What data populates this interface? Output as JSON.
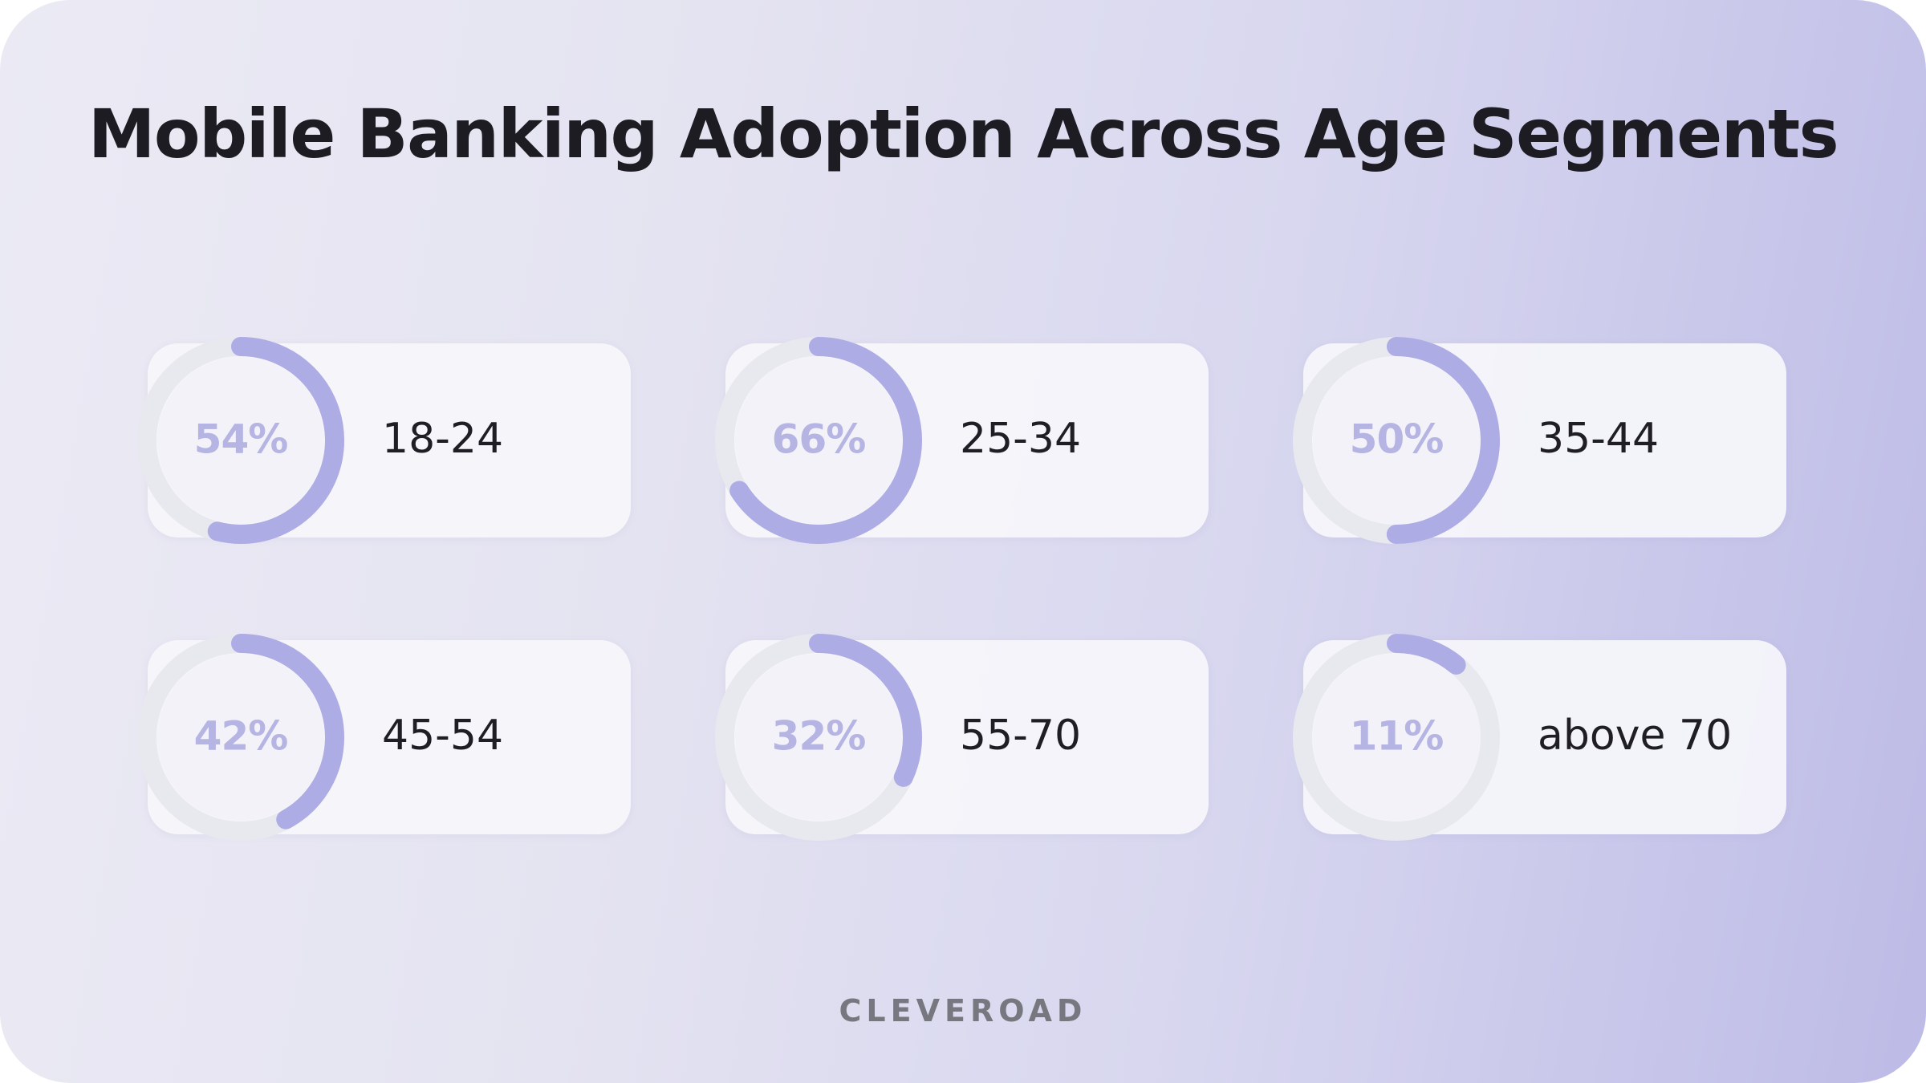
{
  "title": "Mobile Banking Adoption Across Age Segments",
  "brand": "CLEVEROAD",
  "colors": {
    "accent": "#aeace4",
    "track": "#e8e8ef",
    "inner": "#f2f2f8",
    "percent_text": "#b5b4e3",
    "text": "#1c1c22"
  },
  "chart_data": {
    "type": "donut",
    "title": "Mobile Banking Adoption Across Age Segments",
    "categories": [
      "18-24",
      "25-34",
      "35-44",
      "45-54",
      "55-70",
      "above 70"
    ],
    "values": [
      54,
      66,
      50,
      42,
      32,
      11
    ],
    "unit": "%",
    "labels": [
      "54%",
      "66%",
      "50%",
      "42%",
      "32%",
      "11%"
    ]
  }
}
